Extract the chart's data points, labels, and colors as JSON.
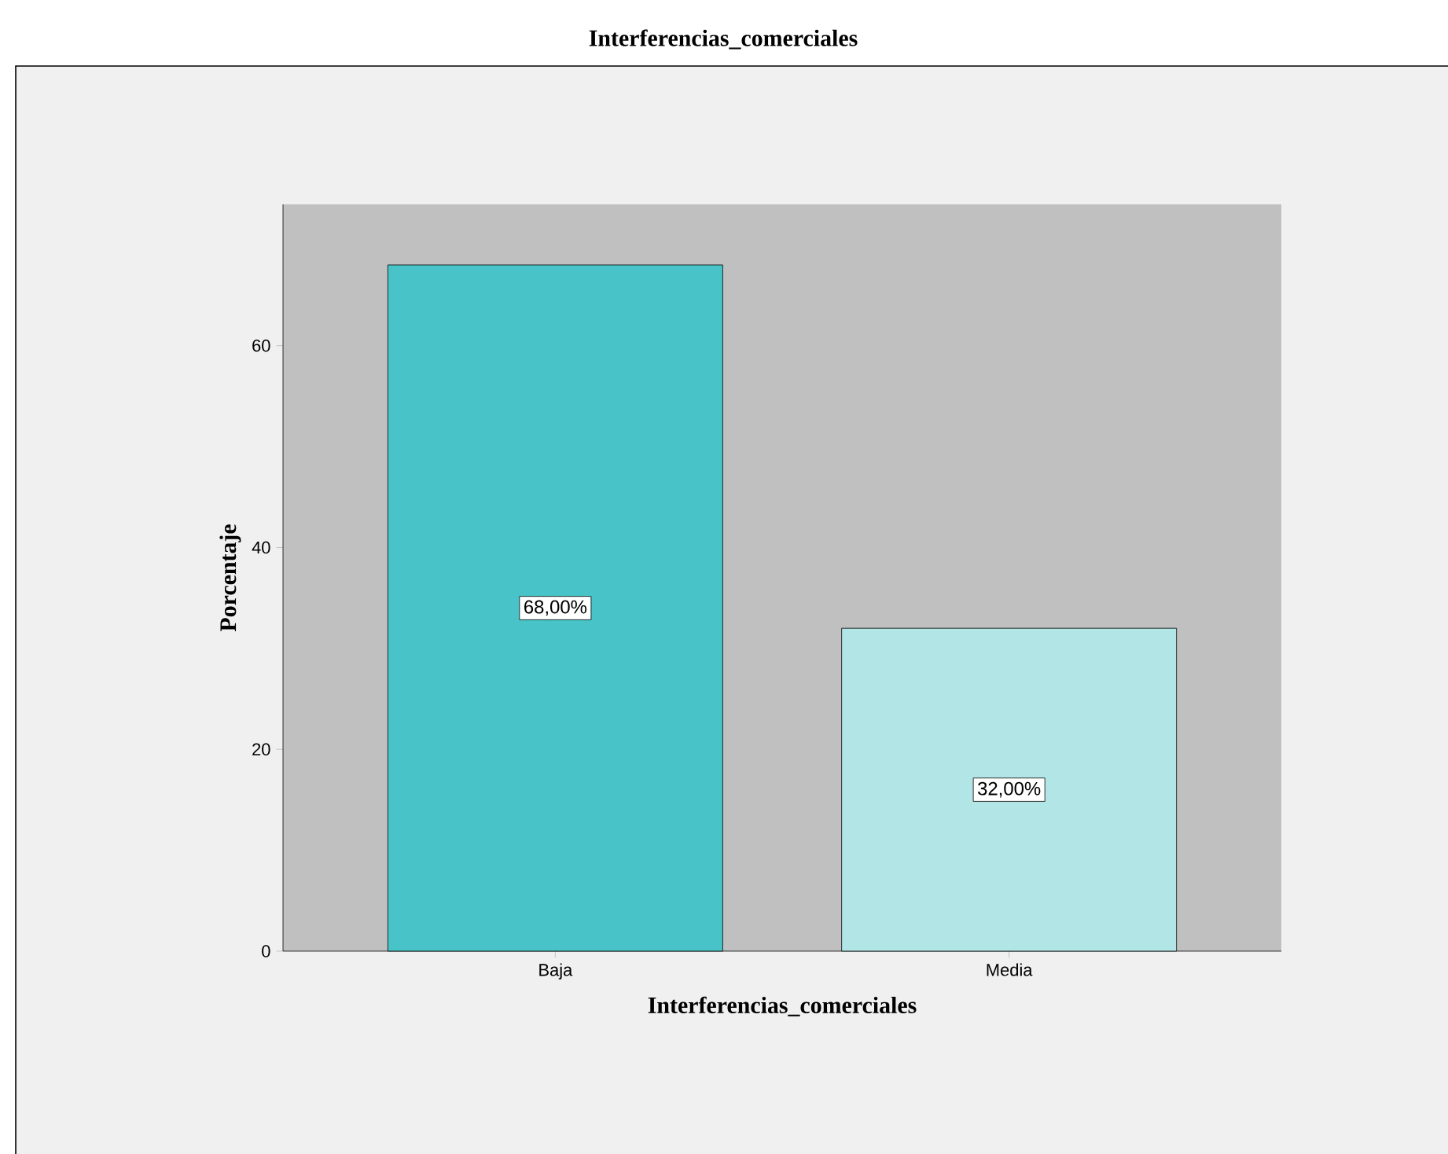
{
  "chart_data": {
    "type": "bar",
    "title": "Interferencias_comerciales",
    "xlabel": "Interferencias_comerciales",
    "ylabel": "Porcentaje",
    "categories": [
      "Baja",
      "Media"
    ],
    "values": [
      68,
      32
    ],
    "colors": [
      "#48c4c8",
      "#b2e6e6"
    ],
    "value_labels": [
      "68,00%",
      "32,00%"
    ],
    "ylim": [
      0,
      74
    ],
    "yticks": [
      0,
      20,
      40,
      60
    ],
    "grid": false
  }
}
